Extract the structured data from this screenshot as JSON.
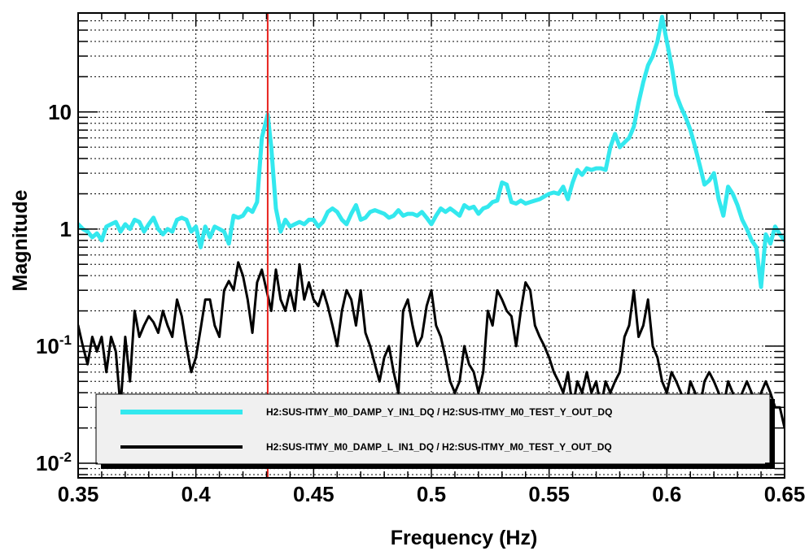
{
  "chart_data": {
    "type": "line",
    "xlabel": "Frequency (Hz)",
    "ylabel": "Magnitude",
    "xlim": [
      0.35,
      0.65
    ],
    "ylim": [
      0.0075,
      70
    ],
    "yscale": "log",
    "grid": true,
    "legend_position": "bottom",
    "x_ticks": [
      {
        "value": 0.35,
        "label": "0.35"
      },
      {
        "value": 0.4,
        "label": "0.4"
      },
      {
        "value": 0.45,
        "label": "0.45"
      },
      {
        "value": 0.5,
        "label": "0.5"
      },
      {
        "value": 0.55,
        "label": "0.55"
      },
      {
        "value": 0.6,
        "label": "0.6"
      },
      {
        "value": 0.65,
        "label": "0.65"
      }
    ],
    "y_ticks": [
      {
        "value": 0.01,
        "base": "10",
        "exp": "-2"
      },
      {
        "value": 0.1,
        "base": "10",
        "exp": "-1"
      },
      {
        "value": 1,
        "base": "1",
        "exp": ""
      },
      {
        "value": 10,
        "base": "10",
        "exp": ""
      }
    ],
    "marker_line": {
      "x": 0.4305,
      "color": "#e8221e"
    },
    "series": [
      {
        "name": "H2:SUS-ITMY_M0_DAMP_Y_IN1_DQ / H2:SUS-ITMY_M0_TEST_Y_OUT_DQ",
        "color": "#33e8ee",
        "width": 5,
        "points": [
          [
            0.35,
            1.1
          ],
          [
            0.352,
            1.0
          ],
          [
            0.354,
            0.95
          ],
          [
            0.356,
            0.85
          ],
          [
            0.358,
            0.92
          ],
          [
            0.36,
            0.8
          ],
          [
            0.362,
            1.05
          ],
          [
            0.364,
            1.1
          ],
          [
            0.366,
            1.15
          ],
          [
            0.368,
            0.95
          ],
          [
            0.37,
            1.1
          ],
          [
            0.372,
            1.0
          ],
          [
            0.374,
            1.2
          ],
          [
            0.376,
            1.15
          ],
          [
            0.378,
            0.95
          ],
          [
            0.38,
            1.1
          ],
          [
            0.382,
            1.25
          ],
          [
            0.384,
            1.0
          ],
          [
            0.386,
            0.9
          ],
          [
            0.388,
            1.0
          ],
          [
            0.39,
            0.95
          ],
          [
            0.392,
            1.2
          ],
          [
            0.394,
            1.25
          ],
          [
            0.396,
            1.2
          ],
          [
            0.398,
            0.95
          ],
          [
            0.4,
            1.05
          ],
          [
            0.402,
            0.7
          ],
          [
            0.404,
            1.05
          ],
          [
            0.406,
            0.85
          ],
          [
            0.408,
            1.05
          ],
          [
            0.41,
            1.0
          ],
          [
            0.412,
            0.95
          ],
          [
            0.414,
            0.75
          ],
          [
            0.416,
            1.3
          ],
          [
            0.418,
            1.25
          ],
          [
            0.42,
            1.3
          ],
          [
            0.422,
            1.5
          ],
          [
            0.424,
            1.4
          ],
          [
            0.426,
            1.7
          ],
          [
            0.428,
            6.0
          ],
          [
            0.4305,
            9.5
          ],
          [
            0.432,
            5.0
          ],
          [
            0.434,
            1.5
          ],
          [
            0.436,
            0.95
          ],
          [
            0.438,
            1.2
          ],
          [
            0.44,
            1.05
          ],
          [
            0.442,
            1.1
          ],
          [
            0.444,
            1.15
          ],
          [
            0.446,
            1.1
          ],
          [
            0.448,
            1.2
          ],
          [
            0.45,
            1.2
          ],
          [
            0.452,
            1.05
          ],
          [
            0.454,
            1.15
          ],
          [
            0.456,
            1.4
          ],
          [
            0.458,
            1.5
          ],
          [
            0.46,
            1.4
          ],
          [
            0.462,
            1.2
          ],
          [
            0.464,
            1.1
          ],
          [
            0.466,
            1.35
          ],
          [
            0.468,
            1.6
          ],
          [
            0.47,
            1.2
          ],
          [
            0.472,
            1.25
          ],
          [
            0.474,
            1.4
          ],
          [
            0.476,
            1.45
          ],
          [
            0.478,
            1.4
          ],
          [
            0.48,
            1.35
          ],
          [
            0.482,
            1.25
          ],
          [
            0.484,
            1.3
          ],
          [
            0.486,
            1.45
          ],
          [
            0.488,
            1.3
          ],
          [
            0.49,
            1.35
          ],
          [
            0.492,
            1.35
          ],
          [
            0.494,
            1.3
          ],
          [
            0.496,
            1.4
          ],
          [
            0.498,
            1.25
          ],
          [
            0.5,
            1.1
          ],
          [
            0.502,
            1.3
          ],
          [
            0.504,
            1.5
          ],
          [
            0.506,
            1.4
          ],
          [
            0.508,
            1.5
          ],
          [
            0.51,
            1.4
          ],
          [
            0.512,
            1.3
          ],
          [
            0.514,
            1.6
          ],
          [
            0.516,
            1.5
          ],
          [
            0.518,
            1.55
          ],
          [
            0.52,
            1.35
          ],
          [
            0.522,
            1.5
          ],
          [
            0.524,
            1.55
          ],
          [
            0.526,
            1.7
          ],
          [
            0.528,
            1.75
          ],
          [
            0.53,
            2.5
          ],
          [
            0.532,
            2.4
          ],
          [
            0.534,
            1.7
          ],
          [
            0.536,
            1.65
          ],
          [
            0.538,
            1.75
          ],
          [
            0.54,
            1.65
          ],
          [
            0.542,
            1.7
          ],
          [
            0.544,
            1.75
          ],
          [
            0.546,
            1.8
          ],
          [
            0.548,
            1.9
          ],
          [
            0.55,
            2.0
          ],
          [
            0.552,
            2.05
          ],
          [
            0.554,
            2.0
          ],
          [
            0.556,
            2.3
          ],
          [
            0.558,
            1.8
          ],
          [
            0.56,
            2.5
          ],
          [
            0.562,
            3.2
          ],
          [
            0.564,
            2.9
          ],
          [
            0.566,
            3.3
          ],
          [
            0.568,
            3.2
          ],
          [
            0.57,
            3.3
          ],
          [
            0.572,
            3.3
          ],
          [
            0.574,
            3.2
          ],
          [
            0.576,
            5.0
          ],
          [
            0.578,
            6.5
          ],
          [
            0.58,
            5.0
          ],
          [
            0.582,
            5.5
          ],
          [
            0.584,
            6.0
          ],
          [
            0.586,
            7.5
          ],
          [
            0.588,
            12.0
          ],
          [
            0.59,
            18.0
          ],
          [
            0.592,
            25.0
          ],
          [
            0.594,
            30.0
          ],
          [
            0.596,
            40.0
          ],
          [
            0.598,
            65.0
          ],
          [
            0.6,
            40.0
          ],
          [
            0.602,
            25.0
          ],
          [
            0.604,
            14.0
          ],
          [
            0.606,
            11.0
          ],
          [
            0.608,
            9.0
          ],
          [
            0.61,
            7.0
          ],
          [
            0.612,
            5.0
          ],
          [
            0.614,
            3.5
          ],
          [
            0.616,
            2.4
          ],
          [
            0.618,
            2.6
          ],
          [
            0.62,
            3.0
          ],
          [
            0.622,
            1.8
          ],
          [
            0.624,
            1.3
          ],
          [
            0.626,
            2.3
          ],
          [
            0.628,
            2.0
          ],
          [
            0.63,
            1.6
          ],
          [
            0.632,
            1.2
          ],
          [
            0.634,
            1.0
          ],
          [
            0.636,
            0.8
          ],
          [
            0.638,
            0.7
          ],
          [
            0.64,
            0.32
          ],
          [
            0.642,
            0.9
          ],
          [
            0.644,
            0.75
          ],
          [
            0.646,
            1.05
          ],
          [
            0.648,
            0.9
          ],
          [
            0.65,
            0.8
          ]
        ]
      },
      {
        "name": "H2:SUS-ITMY_M0_DAMP_L_IN1_DQ / H2:SUS-ITMY_M0_TEST_Y_OUT_DQ",
        "color": "#000000",
        "width": 3,
        "points": [
          [
            0.35,
            0.15
          ],
          [
            0.352,
            0.1
          ],
          [
            0.354,
            0.07
          ],
          [
            0.356,
            0.12
          ],
          [
            0.358,
            0.09
          ],
          [
            0.36,
            0.12
          ],
          [
            0.362,
            0.06
          ],
          [
            0.364,
            0.12
          ],
          [
            0.366,
            0.09
          ],
          [
            0.368,
            0.03
          ],
          [
            0.37,
            0.12
          ],
          [
            0.372,
            0.05
          ],
          [
            0.374,
            0.2
          ],
          [
            0.376,
            0.12
          ],
          [
            0.378,
            0.15
          ],
          [
            0.38,
            0.18
          ],
          [
            0.382,
            0.16
          ],
          [
            0.384,
            0.13
          ],
          [
            0.386,
            0.2
          ],
          [
            0.388,
            0.15
          ],
          [
            0.39,
            0.12
          ],
          [
            0.392,
            0.25
          ],
          [
            0.394,
            0.18
          ],
          [
            0.396,
            0.1
          ],
          [
            0.398,
            0.06
          ],
          [
            0.4,
            0.08
          ],
          [
            0.402,
            0.14
          ],
          [
            0.404,
            0.25
          ],
          [
            0.406,
            0.25
          ],
          [
            0.408,
            0.15
          ],
          [
            0.41,
            0.12
          ],
          [
            0.412,
            0.3
          ],
          [
            0.414,
            0.36
          ],
          [
            0.416,
            0.3
          ],
          [
            0.418,
            0.52
          ],
          [
            0.42,
            0.4
          ],
          [
            0.422,
            0.25
          ],
          [
            0.424,
            0.13
          ],
          [
            0.426,
            0.35
          ],
          [
            0.428,
            0.45
          ],
          [
            0.43,
            0.3
          ],
          [
            0.432,
            0.2
          ],
          [
            0.434,
            0.45
          ],
          [
            0.436,
            0.25
          ],
          [
            0.438,
            0.2
          ],
          [
            0.44,
            0.3
          ],
          [
            0.442,
            0.2
          ],
          [
            0.444,
            0.5
          ],
          [
            0.446,
            0.25
          ],
          [
            0.448,
            0.35
          ],
          [
            0.45,
            0.25
          ],
          [
            0.452,
            0.22
          ],
          [
            0.454,
            0.3
          ],
          [
            0.456,
            0.22
          ],
          [
            0.458,
            0.15
          ],
          [
            0.46,
            0.1
          ],
          [
            0.462,
            0.2
          ],
          [
            0.464,
            0.3
          ],
          [
            0.466,
            0.25
          ],
          [
            0.468,
            0.15
          ],
          [
            0.47,
            0.3
          ],
          [
            0.472,
            0.13
          ],
          [
            0.474,
            0.1
          ],
          [
            0.476,
            0.07
          ],
          [
            0.478,
            0.05
          ],
          [
            0.48,
            0.08
          ],
          [
            0.482,
            0.1
          ],
          [
            0.484,
            0.06
          ],
          [
            0.486,
            0.04
          ],
          [
            0.488,
            0.2
          ],
          [
            0.49,
            0.25
          ],
          [
            0.492,
            0.15
          ],
          [
            0.494,
            0.1
          ],
          [
            0.496,
            0.12
          ],
          [
            0.498,
            0.22
          ],
          [
            0.5,
            0.3
          ],
          [
            0.502,
            0.15
          ],
          [
            0.504,
            0.12
          ],
          [
            0.506,
            0.08
          ],
          [
            0.508,
            0.05
          ],
          [
            0.51,
            0.04
          ],
          [
            0.512,
            0.05
          ],
          [
            0.514,
            0.1
          ],
          [
            0.516,
            0.07
          ],
          [
            0.518,
            0.06
          ],
          [
            0.52,
            0.04
          ],
          [
            0.522,
            0.06
          ],
          [
            0.524,
            0.2
          ],
          [
            0.526,
            0.15
          ],
          [
            0.528,
            0.3
          ],
          [
            0.53,
            0.25
          ],
          [
            0.532,
            0.2
          ],
          [
            0.534,
            0.18
          ],
          [
            0.536,
            0.1
          ],
          [
            0.538,
            0.2
          ],
          [
            0.54,
            0.35
          ],
          [
            0.542,
            0.3
          ],
          [
            0.544,
            0.15
          ],
          [
            0.546,
            0.12
          ],
          [
            0.548,
            0.1
          ],
          [
            0.55,
            0.08
          ],
          [
            0.552,
            0.06
          ],
          [
            0.554,
            0.05
          ],
          [
            0.556,
            0.04
          ],
          [
            0.558,
            0.06
          ],
          [
            0.56,
            0.03
          ],
          [
            0.562,
            0.05
          ],
          [
            0.564,
            0.04
          ],
          [
            0.566,
            0.06
          ],
          [
            0.568,
            0.04
          ],
          [
            0.57,
            0.05
          ],
          [
            0.572,
            0.03
          ],
          [
            0.574,
            0.05
          ],
          [
            0.576,
            0.04
          ],
          [
            0.578,
            0.05
          ],
          [
            0.58,
            0.06
          ],
          [
            0.582,
            0.12
          ],
          [
            0.584,
            0.15
          ],
          [
            0.586,
            0.3
          ],
          [
            0.588,
            0.12
          ],
          [
            0.59,
            0.15
          ],
          [
            0.592,
            0.25
          ],
          [
            0.594,
            0.1
          ],
          [
            0.596,
            0.08
          ],
          [
            0.598,
            0.05
          ],
          [
            0.6,
            0.04
          ],
          [
            0.602,
            0.06
          ],
          [
            0.604,
            0.05
          ],
          [
            0.606,
            0.04
          ],
          [
            0.608,
            0.03
          ],
          [
            0.61,
            0.05
          ],
          [
            0.612,
            0.04
          ],
          [
            0.614,
            0.03
          ],
          [
            0.616,
            0.05
          ],
          [
            0.618,
            0.06
          ],
          [
            0.62,
            0.05
          ],
          [
            0.622,
            0.04
          ],
          [
            0.624,
            0.03
          ],
          [
            0.626,
            0.05
          ],
          [
            0.628,
            0.04
          ],
          [
            0.63,
            0.03
          ],
          [
            0.632,
            0.04
          ],
          [
            0.634,
            0.05
          ],
          [
            0.636,
            0.04
          ],
          [
            0.638,
            0.03
          ],
          [
            0.64,
            0.04
          ],
          [
            0.642,
            0.05
          ],
          [
            0.644,
            0.04
          ],
          [
            0.646,
            0.03
          ],
          [
            0.648,
            0.03
          ],
          [
            0.65,
            0.02
          ]
        ]
      }
    ]
  }
}
